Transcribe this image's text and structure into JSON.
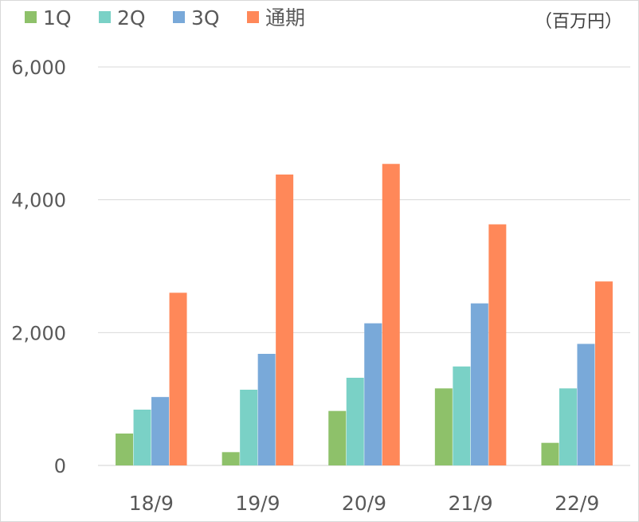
{
  "chart_data": {
    "type": "bar",
    "unit_label": "（百万円）",
    "categories": [
      "18/9",
      "19/9",
      "20/9",
      "21/9",
      "22/9"
    ],
    "series": [
      {
        "name": "1Q",
        "color": "#8ec16a",
        "values": [
          480,
          200,
          820,
          1160,
          340
        ]
      },
      {
        "name": "2Q",
        "color": "#7ad1c6",
        "values": [
          840,
          1140,
          1320,
          1490,
          1160
        ]
      },
      {
        "name": "3Q",
        "color": "#79a9d9",
        "values": [
          1030,
          1680,
          2140,
          2440,
          1830
        ]
      },
      {
        "name": "通期",
        "color": "#ff8859",
        "values": [
          2600,
          4380,
          4540,
          3630,
          2770
        ]
      }
    ],
    "y_ticks": [
      "0",
      "2,000",
      "4,000",
      "6,000"
    ],
    "y_tick_values": [
      0,
      2000,
      4000,
      6000
    ],
    "ylim": [
      0,
      6000
    ],
    "grid": true,
    "legend_position": "top-left"
  }
}
